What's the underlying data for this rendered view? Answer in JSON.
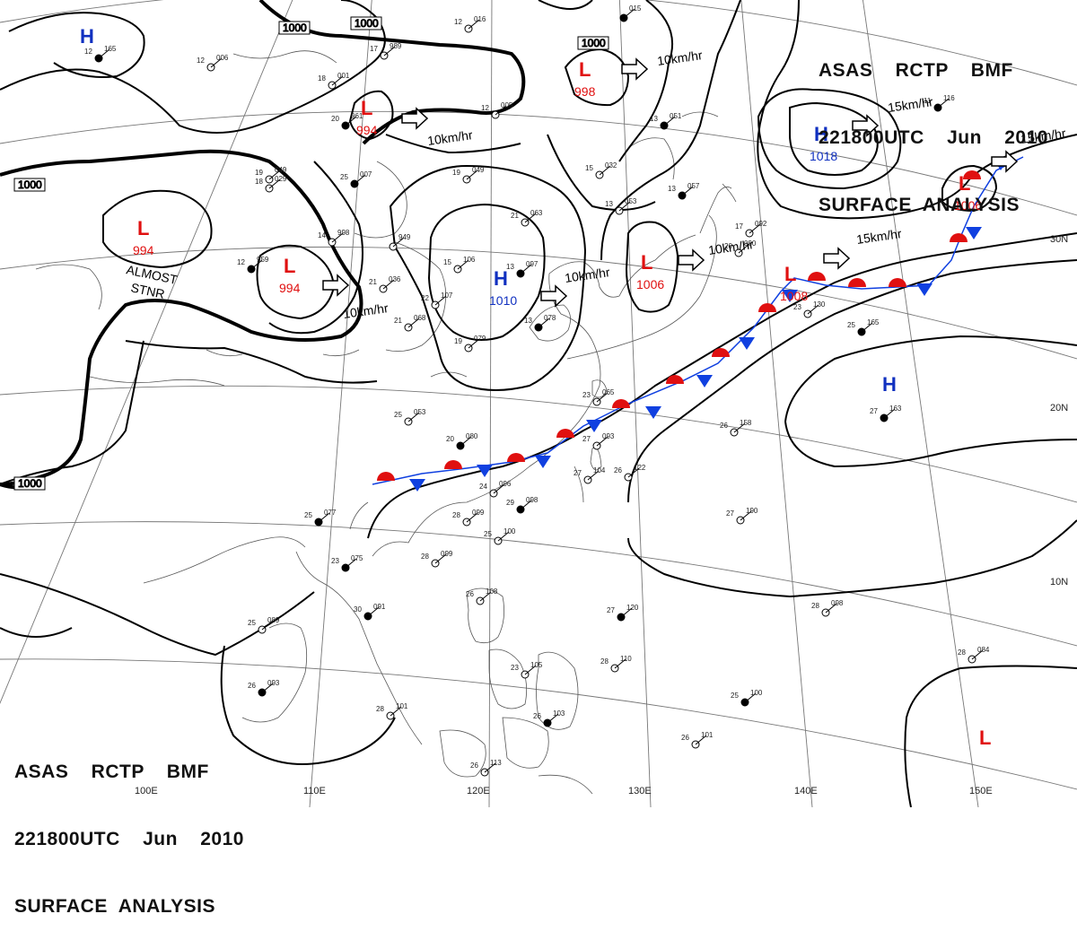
{
  "header": {
    "line1": "ASAS    RCTP    BMF",
    "line2": "221800UTC    Jun    2010",
    "line3": "SURFACE  ANALYSIS"
  },
  "colors": {
    "low": "#e01010",
    "high": "#1030c0",
    "warm_front": "#e01010",
    "cold_front": "#1040e0",
    "isobar": "#000000",
    "coast": "#555555"
  },
  "lon_labels": [
    "100E",
    "110E",
    "120E",
    "130E",
    "140E",
    "150E"
  ],
  "lat_labels": [
    "30N",
    "20N",
    "10N"
  ],
  "isobar_labels": [
    "1000",
    "1000",
    "1000",
    "1000",
    "1000"
  ],
  "pressure_centers": [
    {
      "type": "H",
      "value": ""
    },
    {
      "type": "L",
      "value": "994"
    },
    {
      "type": "L",
      "value": "994"
    },
    {
      "type": "L",
      "value": "994"
    },
    {
      "type": "H",
      "value": "1010"
    },
    {
      "type": "L",
      "value": "998"
    },
    {
      "type": "L",
      "value": "1006"
    },
    {
      "type": "H",
      "value": "1018"
    },
    {
      "type": "L",
      "value": "1006"
    },
    {
      "type": "L",
      "value": "1008"
    },
    {
      "type": "H",
      "value": ""
    },
    {
      "type": "L",
      "value": ""
    }
  ],
  "motion_labels": [
    "10km/hr",
    "10km/hr",
    "10km/hr",
    "10km/hr",
    "10km/hr",
    "15km/hr",
    "15km/hr",
    "15km/hr"
  ],
  "annotation": {
    "line1": "ALMOST",
    "line2": "STNR"
  },
  "stations": [
    {
      "t": "12",
      "p": "165"
    },
    {
      "t": "17",
      "p": "989"
    },
    {
      "t": "18",
      "p": "001"
    },
    {
      "t": "20",
      "p": "961"
    },
    {
      "t": "12",
      "p": "016"
    },
    {
      "t": "12",
      "p": "005"
    },
    {
      "t": "",
      "p": "015"
    },
    {
      "t": "19",
      "p": "049"
    },
    {
      "t": "15",
      "p": "032"
    },
    {
      "t": "13",
      "p": "051"
    },
    {
      "t": "19",
      "p": "049"
    },
    {
      "t": "18",
      "p": "029"
    },
    {
      "t": "25",
      "p": "007"
    },
    {
      "t": "21",
      "p": "063"
    },
    {
      "t": "13",
      "p": "053"
    },
    {
      "t": "13",
      "p": "057"
    },
    {
      "t": "17",
      "p": "092"
    },
    {
      "t": "20",
      "p": "090"
    },
    {
      "t": "11",
      "p": "116"
    },
    {
      "t": "14",
      "p": "998"
    },
    {
      "t": "",
      "p": "949"
    },
    {
      "t": "12",
      "p": "959"
    },
    {
      "t": "21",
      "p": "036"
    },
    {
      "t": "15",
      "p": "106"
    },
    {
      "t": "13",
      "p": "097"
    },
    {
      "t": "22",
      "p": "107"
    },
    {
      "t": "21",
      "p": "068"
    },
    {
      "t": "13",
      "p": "078"
    },
    {
      "t": "19",
      "p": "079"
    },
    {
      "t": "23",
      "p": "130"
    },
    {
      "t": "25",
      "p": "165"
    },
    {
      "t": "12",
      "p": "006"
    },
    {
      "t": "25",
      "p": "053"
    },
    {
      "t": "20",
      "p": "080"
    },
    {
      "t": "27",
      "p": "093"
    },
    {
      "t": "26",
      "p": "158"
    },
    {
      "t": "27",
      "p": "163"
    },
    {
      "t": "23",
      "p": "065"
    },
    {
      "t": "24",
      "p": "096"
    },
    {
      "t": "29",
      "p": "098"
    },
    {
      "t": "27",
      "p": "104"
    },
    {
      "t": "26",
      "p": "122"
    },
    {
      "t": "25",
      "p": "077"
    },
    {
      "t": "28",
      "p": "099"
    },
    {
      "t": "25",
      "p": "100"
    },
    {
      "t": "23",
      "p": "075"
    },
    {
      "t": "28",
      "p": "099"
    },
    {
      "t": "27",
      "p": "190"
    },
    {
      "t": "30",
      "p": "091"
    },
    {
      "t": "25",
      "p": "089"
    },
    {
      "t": "26",
      "p": "108"
    },
    {
      "t": "27",
      "p": "120"
    },
    {
      "t": "28",
      "p": "098"
    },
    {
      "t": "28",
      "p": "084"
    },
    {
      "t": "26",
      "p": "093"
    },
    {
      "t": "28",
      "p": "110"
    },
    {
      "t": "23",
      "p": "105"
    },
    {
      "t": "25",
      "p": "100"
    },
    {
      "t": "28",
      "p": "101"
    },
    {
      "t": "26",
      "p": "113"
    },
    {
      "t": "26",
      "p": "103"
    },
    {
      "t": "26",
      "p": "101"
    }
  ]
}
